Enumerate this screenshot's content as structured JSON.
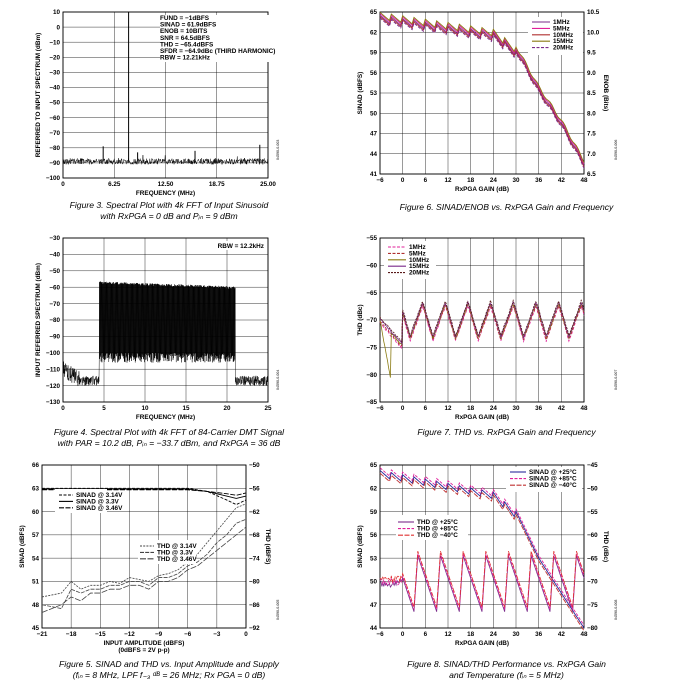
{
  "figures": [
    {
      "id": "fig3",
      "caption_lines": [
        "Figure 3. Spectral Plot with 4k FFT of Input Sinusoid",
        "with RxPGA = 0 dB and Pᵢₙ = 9 dBm"
      ],
      "chart_data": {
        "type": "line",
        "xlabel": "FREQUENCY (MHz)",
        "ylabel": "REFERRED TO INPUT SPECTRUM (dBm)",
        "xlim": [
          0,
          25
        ],
        "ylim": [
          -100,
          10
        ],
        "xticks": [
          0,
          6.25,
          12.5,
          18.75,
          25
        ],
        "xtick_labels": [
          "0",
          "6.25",
          "12.50",
          "18.75",
          "25.00"
        ],
        "yticks": [
          10,
          0,
          -10,
          -20,
          -30,
          -40,
          -50,
          -60,
          -70,
          -80,
          -90,
          -100
        ],
        "ytick_labels": [
          "10",
          "0",
          "−10",
          "−20",
          "−30",
          "−40",
          "−50",
          "−60",
          "−70",
          "−80",
          "−90",
          "−100"
        ],
        "grid": true,
        "noise_floor": -89,
        "spurs": [
          {
            "x": 8.0,
            "y": 10
          },
          {
            "x": 4.9,
            "y": -79
          },
          {
            "x": 9.1,
            "y": -83
          },
          {
            "x": 16.1,
            "y": -82
          },
          {
            "x": 24.0,
            "y": -78
          }
        ],
        "annotations": [
          "FUND = −1dBFS",
          "SINAD = 61.9dBFS",
          "ENOB = 10BITS",
          "SNR = 64.5dBFS",
          "THD = −65.4dBFS",
          "SFDR = −64.9dBc (THIRD HARMONIC)",
          "RBW = 12.21kHz"
        ]
      }
    },
    {
      "id": "fig6",
      "caption_lines": [
        "Figure 6. SINAD/ENOB vs. RxPGA Gain and Frequency"
      ],
      "chart_data": {
        "type": "line",
        "xlabel": "RxPGA GAIN (dB)",
        "ylabel": "SINAD (dBFS)",
        "ylabel2": "ENOB (Bits)",
        "xlim": [
          -6,
          48
        ],
        "ylim": [
          41,
          65
        ],
        "y2lim": [
          6.5,
          10.5
        ],
        "xticks": [
          -6,
          0,
          6,
          12,
          18,
          24,
          30,
          36,
          42,
          48
        ],
        "xtick_labels": [
          "−6",
          "0",
          "6",
          "12",
          "18",
          "24",
          "30",
          "36",
          "42",
          "48"
        ],
        "yticks": [
          65,
          62,
          59,
          56,
          53,
          50,
          47,
          44,
          41
        ],
        "y2ticks": [
          10.5,
          10.0,
          9.5,
          9.0,
          8.5,
          8.0,
          7.5,
          7.0,
          6.5
        ],
        "y2tick_labels": [
          "10.5",
          "10.0",
          "9.5",
          "9.0",
          "8.5",
          "8.0",
          "7.5",
          "7.0",
          "6.5"
        ],
        "grid": true,
        "series": [
          {
            "name": "1MHz",
            "color": "#7a2a8a"
          },
          {
            "name": "5MHz",
            "color": "#e0209a"
          },
          {
            "name": "10MHz",
            "color": "#b03030"
          },
          {
            "name": "15MHz",
            "color": "#8a7a10"
          },
          {
            "name": "20MHz",
            "color": "#7a2a8a"
          }
        ],
        "envelope": {
          "x": [
            -6,
            24,
            30,
            36,
            42,
            48
          ],
          "y": [
            64.5,
            62,
            59.5,
            53.5,
            48.5,
            42.5
          ]
        },
        "legend": "top-right"
      }
    },
    {
      "id": "fig4",
      "caption_lines": [
        "Figure 4. Spectral Plot with 4k FFT of 84-Carrier DMT Signal",
        "with PAR = 10.2 dB, Pᵢₙ = −33.7 dBm, and RxPGA = 36 dB"
      ],
      "chart_data": {
        "type": "line",
        "xlabel": "FREQUENCY (MHz)",
        "ylabel": "INPUT REFERRED SPECTRUM (dBm)",
        "xlim": [
          0,
          25
        ],
        "ylim": [
          -130,
          -30
        ],
        "xticks": [
          0,
          5,
          10,
          15,
          20,
          25
        ],
        "xtick_labels": [
          "0",
          "5",
          "10",
          "15",
          "20",
          "25"
        ],
        "yticks": [
          -30,
          -40,
          -50,
          -60,
          -70,
          -80,
          -90,
          -100,
          -110,
          -120,
          -130
        ],
        "ytick_labels": [
          "−30",
          "−40",
          "−50",
          "−60",
          "−70",
          "−80",
          "−90",
          "−100",
          "−110",
          "−120",
          "−130"
        ],
        "grid": true,
        "band_x": [
          4.4,
          21.0
        ],
        "band_top_y": [
          -58,
          -61
        ],
        "band_floor_y": -100,
        "noise_floor": -117,
        "annotations": [
          "RBW = 12.2kHz"
        ]
      }
    },
    {
      "id": "fig7",
      "caption_lines": [
        "Figure 7. THD vs. RxPGA Gain and Frequency"
      ],
      "chart_data": {
        "type": "line",
        "xlabel": "RxPGA GAIN (dB)",
        "ylabel": "THD (dBc)",
        "xlim": [
          -6,
          48
        ],
        "ylim": [
          -85,
          -55
        ],
        "xticks": [
          -6,
          0,
          6,
          12,
          18,
          24,
          30,
          36,
          42,
          48
        ],
        "xtick_labels": [
          "−6",
          "0",
          "6",
          "12",
          "18",
          "24",
          "30",
          "36",
          "42",
          "48"
        ],
        "yticks": [
          -55,
          -60,
          -65,
          -70,
          -75,
          -80,
          -85
        ],
        "ytick_labels": [
          "−55",
          "−60",
          "−65",
          "−70",
          "−75",
          "−80",
          "−85"
        ],
        "grid": true,
        "sawtooth": {
          "period": 6,
          "high": -64.5,
          "low": -76,
          "base": -70
        },
        "series": [
          {
            "name": "1MHz",
            "color": "#e0209a"
          },
          {
            "name": "5MHz",
            "color": "#b03030"
          },
          {
            "name": "10MHz",
            "color": "#8a7a10"
          },
          {
            "name": "15MHz",
            "color": "#7a2a8a"
          },
          {
            "name": "20MHz",
            "color": "#5a1a1a"
          }
        ],
        "legend": "top-left"
      }
    },
    {
      "id": "fig5",
      "caption_lines": [
        "Figure 5. SINAD and THD vs. Input Amplitude and Supply",
        "(fᵢₙ = 8 MHz, LPF f₋₃ ᵈᴮ = 26 MHz; Rx PGA = 0 dB)"
      ],
      "chart_data": {
        "type": "line",
        "xlabel": "INPUT AMPLITUDE (dBFS)",
        "xlabel2": "(0dBFS = 2V p-p)",
        "ylabel": "SINAD (dBFS)",
        "ylabel2": "THD (dBFS)",
        "xlim": [
          -21,
          0
        ],
        "ylim": [
          45,
          66
        ],
        "y2lim": [
          -92,
          -50
        ],
        "xticks": [
          -21,
          -18,
          -15,
          -12,
          -9,
          -6,
          -3,
          0
        ],
        "xtick_labels": [
          "−21",
          "−18",
          "−15",
          "−12",
          "−9",
          "−6",
          "−3",
          "0"
        ],
        "yticks": [
          66,
          63,
          60,
          57,
          54,
          51,
          48,
          45
        ],
        "y2ticks": [
          -50,
          -56,
          -62,
          -68,
          -74,
          -80,
          -86,
          -92
        ],
        "y2tick_labels": [
          "−50",
          "−56",
          "−62",
          "−68",
          "−74",
          "−80",
          "−86",
          "−92"
        ],
        "grid": true,
        "sinad_series": [
          {
            "name": "SINAD @ 3.14V",
            "x": [
              -21,
              -6,
              -4,
              -2,
              -1,
              0
            ],
            "y": [
              63.0,
              63.0,
              62.6,
              61.5,
              60.9,
              61.5
            ]
          },
          {
            "name": "SINAD @ 3.3V",
            "x": [
              -21,
              -6,
              -4,
              -2,
              -1,
              0
            ],
            "y": [
              62.9,
              62.9,
              62.6,
              62.0,
              61.7,
              62.0
            ]
          },
          {
            "name": "SINAD @ 3.46V",
            "x": [
              -21,
              -6,
              -4,
              -2,
              -1,
              0
            ],
            "y": [
              62.8,
              62.8,
              62.6,
              62.3,
              62.1,
              62.4
            ]
          }
        ],
        "thd_series": [
          {
            "name": "THD @ 3.14V",
            "x": [
              -21,
              -19,
              -18,
              -17,
              -16,
              -15,
              -14,
              -13,
              -12,
              -11,
              -10,
              -9,
              -8,
              -7,
              -6,
              -5,
              -4,
              -3,
              -2,
              -1,
              0
            ],
            "y": [
              -84,
              -83,
              -80,
              -82,
              -81,
              -81,
              -80,
              -80.5,
              -79,
              -79.5,
              -80,
              -78.5,
              -78,
              -77,
              -75,
              -73,
              -70,
              -67,
              -64,
              -61,
              -60
            ]
          },
          {
            "name": "THD @ 3.3V",
            "x": [
              -21,
              -19,
              -18,
              -17,
              -16,
              -15,
              -14,
              -13,
              -12,
              -11,
              -10,
              -9,
              -8,
              -7,
              -6,
              -5,
              -4,
              -3,
              -2,
              -1,
              0
            ],
            "y": [
              -86,
              -87,
              -82,
              -83,
              -82,
              -82,
              -81,
              -81,
              -80,
              -80,
              -81,
              -79,
              -79,
              -78,
              -76,
              -75,
              -73,
              -70,
              -68,
              -65,
              -64
            ]
          },
          {
            "name": "THD @ 3.46V",
            "x": [
              -21,
              -19,
              -18,
              -17,
              -16,
              -15,
              -14,
              -13,
              -12,
              -11,
              -10,
              -9,
              -8,
              -7,
              -6,
              -5,
              -4,
              -3,
              -2,
              -1,
              0
            ],
            "y": [
              -88,
              -86,
              -84,
              -85,
              -83,
              -83,
              -82,
              -82,
              -81,
              -81,
              -82,
              -80,
              -80,
              -79,
              -77,
              -76,
              -74,
              -72,
              -70,
              -68,
              -66
            ]
          }
        ],
        "legend": "upper-left (SINAD), center (THD)"
      }
    },
    {
      "id": "fig8",
      "caption_lines": [
        "Figure 8. SINAD/THD Performance vs. RxPGA Gain",
        "and Temperature (fᵢₙ = 5 MHz)"
      ],
      "chart_data": {
        "type": "line",
        "xlabel": "RxPGA GAIN (dB)",
        "ylabel": "SINAD (dBFS)",
        "ylabel2": "THD (dBc)",
        "xlim": [
          -6,
          48
        ],
        "ylim": [
          44,
          65
        ],
        "y2lim": [
          -80,
          -45
        ],
        "xticks": [
          -6,
          0,
          6,
          12,
          18,
          24,
          30,
          36,
          42,
          48
        ],
        "xtick_labels": [
          "−6",
          "0",
          "6",
          "12",
          "18",
          "24",
          "30",
          "36",
          "42",
          "48"
        ],
        "yticks": [
          65,
          62,
          59,
          56,
          53,
          50,
          47,
          44
        ],
        "y2ticks": [
          -45,
          -50,
          -55,
          -60,
          -65,
          -70,
          -75,
          -80
        ],
        "y2tick_labels": [
          "−45",
          "−50",
          "−55",
          "−60",
          "−65",
          "−70",
          "−75",
          "−80"
        ],
        "grid": true,
        "sinad_series": [
          {
            "name": "SINAD @ +25°C",
            "color": "#2a2a9a"
          },
          {
            "name": "SINAD @ +85°C",
            "color": "#e0209a"
          },
          {
            "name": "SINAD @ −40°C",
            "color": "#c03030"
          }
        ],
        "thd_series": [
          {
            "name": "THD @ +25°C",
            "color": "#7a2a8a"
          },
          {
            "name": "THD @ +85°C",
            "color": "#e0209a"
          },
          {
            "name": "THD @ −40°C",
            "color": "#e03030"
          }
        ],
        "sinad_envelope": {
          "x": [
            -6,
            24,
            30,
            36,
            42,
            48
          ],
          "y": [
            64.3,
            61.5,
            59,
            53,
            48.5,
            44
          ]
        },
        "thd_sawtooth": {
          "period": 6,
          "high": -64,
          "low": -76
        },
        "legend": "top-right (SINAD), center-left (THD)"
      }
    }
  ],
  "colors": {
    "axis": "#000000",
    "grid": "#000000",
    "trace": "#000000"
  }
}
